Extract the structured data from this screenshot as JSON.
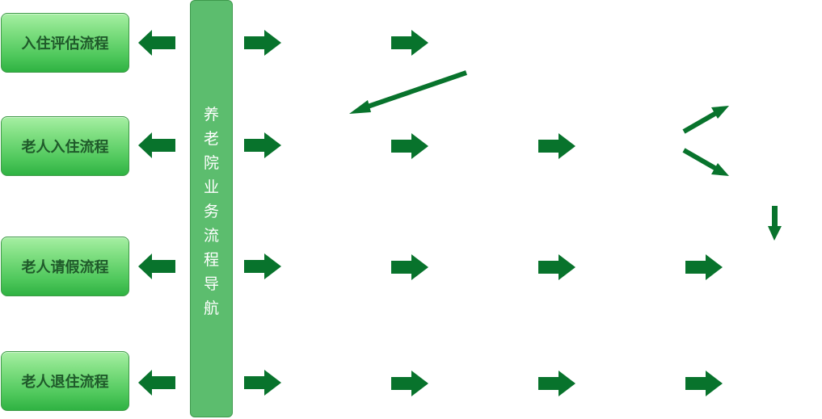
{
  "navigation": {
    "title": "养老院业务流程导航"
  },
  "processes": [
    {
      "label": "入住评估流程"
    },
    {
      "label": "老人入住流程"
    },
    {
      "label": "老人请假流程"
    },
    {
      "label": "老人退住流程"
    }
  ],
  "colors": {
    "arrow": "#08732c",
    "nav_bar": "#5cbd6e",
    "button_text": "#1f5a2a"
  },
  "icons": {
    "left_arrow": "arrow-left-icon",
    "right_arrow": "arrow-right-icon",
    "diagonal_arrow": "arrow-diagonal-icon",
    "down_arrow": "arrow-down-icon"
  }
}
